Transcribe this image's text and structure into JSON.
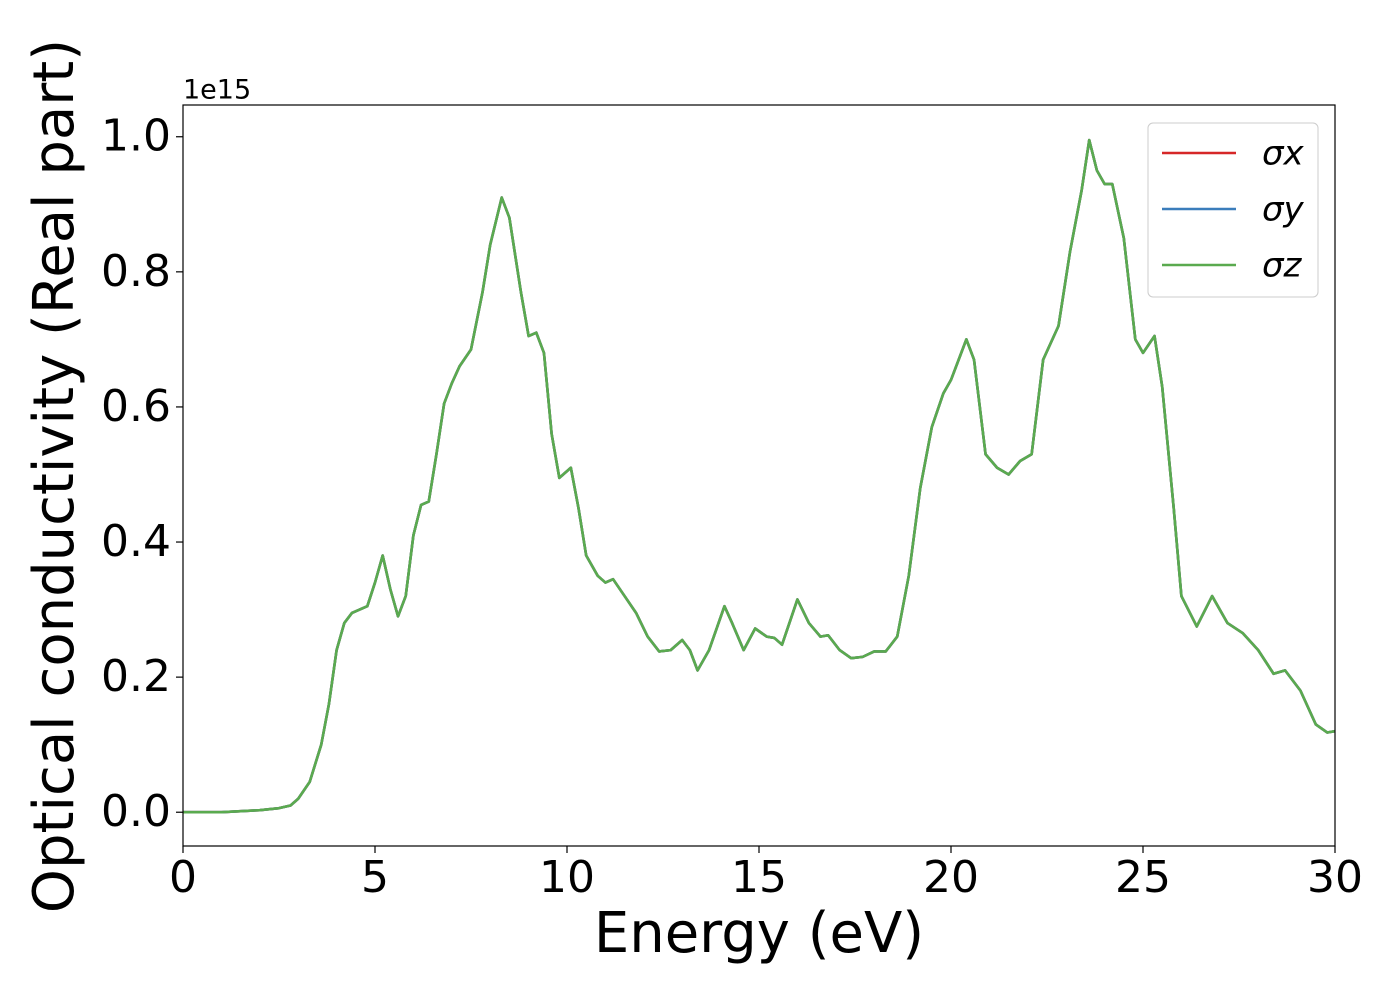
{
  "chart_data": {
    "type": "line",
    "x_label": "Energy (eV)",
    "y_label": "Optical conductivity (Real part)",
    "y_offset_label": "1e15",
    "x": [
      0,
      1,
      2,
      2.5,
      2.8,
      3.0,
      3.3,
      3.6,
      3.8,
      4.0,
      4.2,
      4.4,
      4.6,
      4.8,
      5.0,
      5.2,
      5.4,
      5.6,
      5.8,
      6.0,
      6.2,
      6.4,
      6.6,
      6.8,
      7.0,
      7.2,
      7.5,
      7.8,
      8.0,
      8.3,
      8.5,
      8.8,
      9.0,
      9.2,
      9.4,
      9.6,
      9.8,
      10.1,
      10.3,
      10.5,
      10.8,
      11.0,
      11.2,
      11.5,
      11.8,
      12.1,
      12.4,
      12.7,
      13.0,
      13.2,
      13.4,
      13.7,
      14.1,
      14.3,
      14.6,
      14.9,
      15.2,
      15.4,
      15.6,
      16.0,
      16.3,
      16.6,
      16.8,
      17.1,
      17.4,
      17.7,
      18.0,
      18.3,
      18.6,
      18.9,
      19.2,
      19.5,
      19.8,
      20.0,
      20.4,
      20.6,
      20.9,
      21.2,
      21.5,
      21.8,
      22.1,
      22.4,
      22.8,
      23.1,
      23.4,
      23.6,
      23.8,
      24.0,
      24.2,
      24.5,
      24.8,
      25.0,
      25.3,
      25.5,
      25.8,
      26.0,
      26.4,
      26.8,
      27.2,
      27.6,
      28.0,
      28.4,
      28.7,
      29.1,
      29.5,
      29.8,
      30.0
    ],
    "series": [
      {
        "name": "σx",
        "color": "#d62728",
        "values": [
          0,
          0,
          0.003,
          0.006,
          0.01,
          0.02,
          0.045,
          0.1,
          0.16,
          0.24,
          0.28,
          0.295,
          0.3,
          0.305,
          0.34,
          0.38,
          0.33,
          0.29,
          0.32,
          0.41,
          0.455,
          0.46,
          0.53,
          0.605,
          0.635,
          0.66,
          0.685,
          0.77,
          0.84,
          0.91,
          0.88,
          0.77,
          0.705,
          0.71,
          0.68,
          0.56,
          0.495,
          0.51,
          0.45,
          0.38,
          0.35,
          0.34,
          0.345,
          0.32,
          0.295,
          0.26,
          0.238,
          0.24,
          0.255,
          0.24,
          0.21,
          0.24,
          0.305,
          0.28,
          0.24,
          0.272,
          0.26,
          0.258,
          0.248,
          0.315,
          0.28,
          0.26,
          0.262,
          0.24,
          0.228,
          0.23,
          0.238,
          0.238,
          0.26,
          0.35,
          0.48,
          0.57,
          0.62,
          0.64,
          0.7,
          0.67,
          0.53,
          0.51,
          0.5,
          0.52,
          0.53,
          0.67,
          0.72,
          0.83,
          0.92,
          0.995,
          0.95,
          0.93,
          0.93,
          0.85,
          0.7,
          0.68,
          0.705,
          0.63,
          0.45,
          0.32,
          0.275,
          0.32,
          0.28,
          0.265,
          0.24,
          0.205,
          0.21,
          0.18,
          0.13,
          0.118,
          0.12
        ]
      },
      {
        "name": "σy",
        "color": "#3b7dbb",
        "values": [
          0,
          0,
          0.003,
          0.006,
          0.01,
          0.02,
          0.045,
          0.1,
          0.16,
          0.24,
          0.28,
          0.295,
          0.3,
          0.305,
          0.34,
          0.38,
          0.33,
          0.29,
          0.32,
          0.41,
          0.455,
          0.46,
          0.53,
          0.605,
          0.635,
          0.66,
          0.685,
          0.77,
          0.84,
          0.91,
          0.88,
          0.77,
          0.705,
          0.71,
          0.68,
          0.56,
          0.495,
          0.51,
          0.45,
          0.38,
          0.35,
          0.34,
          0.345,
          0.32,
          0.295,
          0.26,
          0.238,
          0.24,
          0.255,
          0.24,
          0.21,
          0.24,
          0.305,
          0.28,
          0.24,
          0.272,
          0.26,
          0.258,
          0.248,
          0.315,
          0.28,
          0.26,
          0.262,
          0.24,
          0.228,
          0.23,
          0.238,
          0.238,
          0.26,
          0.35,
          0.48,
          0.57,
          0.62,
          0.64,
          0.7,
          0.67,
          0.53,
          0.51,
          0.5,
          0.52,
          0.53,
          0.67,
          0.72,
          0.83,
          0.92,
          0.995,
          0.95,
          0.93,
          0.93,
          0.85,
          0.7,
          0.68,
          0.705,
          0.63,
          0.45,
          0.32,
          0.275,
          0.32,
          0.28,
          0.265,
          0.24,
          0.205,
          0.21,
          0.18,
          0.13,
          0.118,
          0.12
        ]
      },
      {
        "name": "σz",
        "color": "#5aaa4f",
        "values": [
          0,
          0,
          0.003,
          0.006,
          0.01,
          0.02,
          0.045,
          0.1,
          0.16,
          0.24,
          0.28,
          0.295,
          0.3,
          0.305,
          0.34,
          0.38,
          0.33,
          0.29,
          0.32,
          0.41,
          0.455,
          0.46,
          0.53,
          0.605,
          0.635,
          0.66,
          0.685,
          0.77,
          0.84,
          0.91,
          0.88,
          0.77,
          0.705,
          0.71,
          0.68,
          0.56,
          0.495,
          0.51,
          0.45,
          0.38,
          0.35,
          0.34,
          0.345,
          0.32,
          0.295,
          0.26,
          0.238,
          0.24,
          0.255,
          0.24,
          0.21,
          0.24,
          0.305,
          0.28,
          0.24,
          0.272,
          0.26,
          0.258,
          0.248,
          0.315,
          0.28,
          0.26,
          0.262,
          0.24,
          0.228,
          0.23,
          0.238,
          0.238,
          0.26,
          0.35,
          0.48,
          0.57,
          0.62,
          0.64,
          0.7,
          0.67,
          0.53,
          0.51,
          0.5,
          0.52,
          0.53,
          0.67,
          0.72,
          0.83,
          0.92,
          0.995,
          0.95,
          0.93,
          0.93,
          0.85,
          0.7,
          0.68,
          0.705,
          0.63,
          0.45,
          0.32,
          0.275,
          0.32,
          0.28,
          0.265,
          0.24,
          0.205,
          0.21,
          0.18,
          0.13,
          0.118,
          0.12
        ]
      }
    ],
    "xlim": [
      0,
      30
    ],
    "xticks": [
      0,
      5,
      10,
      15,
      20,
      25,
      30
    ],
    "ylim": [
      -0.05,
      1.047
    ],
    "yticks": [
      {
        "value": 0,
        "label": "0.0"
      },
      0.2,
      0.4,
      0.6,
      0.8,
      {
        "value": 1,
        "label": "1.0"
      }
    ],
    "grid": false,
    "legend": "upper right"
  }
}
